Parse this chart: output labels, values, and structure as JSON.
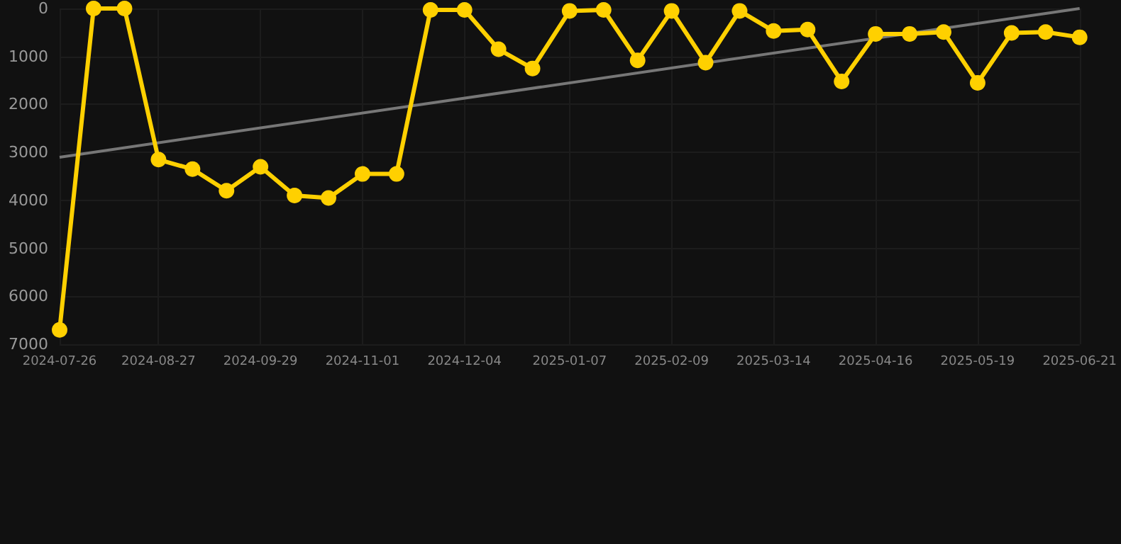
{
  "chart_data": {
    "type": "line",
    "x": [
      "2024-07-26",
      "2024-08-06",
      "2024-08-16",
      "2024-08-27",
      "2024-09-07",
      "2024-09-18",
      "2024-09-29",
      "2024-10-10",
      "2024-10-21",
      "2024-11-01",
      "2024-11-12",
      "2024-11-23",
      "2024-12-04",
      "2024-12-15",
      "2024-12-26",
      "2025-01-07",
      "2025-01-18",
      "2025-01-29",
      "2025-02-09",
      "2025-02-20",
      "2025-03-03",
      "2025-03-14",
      "2025-03-25",
      "2025-04-05",
      "2025-04-16",
      "2025-04-27",
      "2025-05-08",
      "2025-05-19",
      "2025-05-30",
      "2025-06-10",
      "2025-06-21"
    ],
    "series": [
      {
        "color": "#ffd000",
        "marker": "circle",
        "values": [
          6700,
          0,
          0,
          3150,
          3350,
          3800,
          3300,
          3900,
          3950,
          3450,
          3450,
          30,
          30,
          850,
          1250,
          50,
          30,
          1080,
          50,
          1130,
          50,
          470,
          440,
          1520,
          530,
          530,
          490,
          1550,
          510,
          490,
          600
        ]
      },
      {
        "color": "#777777",
        "marker": "none",
        "x": [
          "2024-07-26",
          "2025-06-21"
        ],
        "values": [
          3100,
          0
        ]
      }
    ],
    "ylim": [
      7000,
      0
    ],
    "yticks": [
      0,
      1000,
      2000,
      3000,
      4000,
      5000,
      6000,
      7000
    ],
    "xlim": [
      "2024-07-26",
      "2025-06-21"
    ],
    "xticks": [
      "2024-07-26",
      "2024-08-27",
      "2024-09-29",
      "2024-11-01",
      "2024-12-04",
      "2025-01-07",
      "2025-02-09",
      "2025-03-14",
      "2025-04-16",
      "2025-05-19",
      "2025-06-21"
    ],
    "grid": true
  }
}
